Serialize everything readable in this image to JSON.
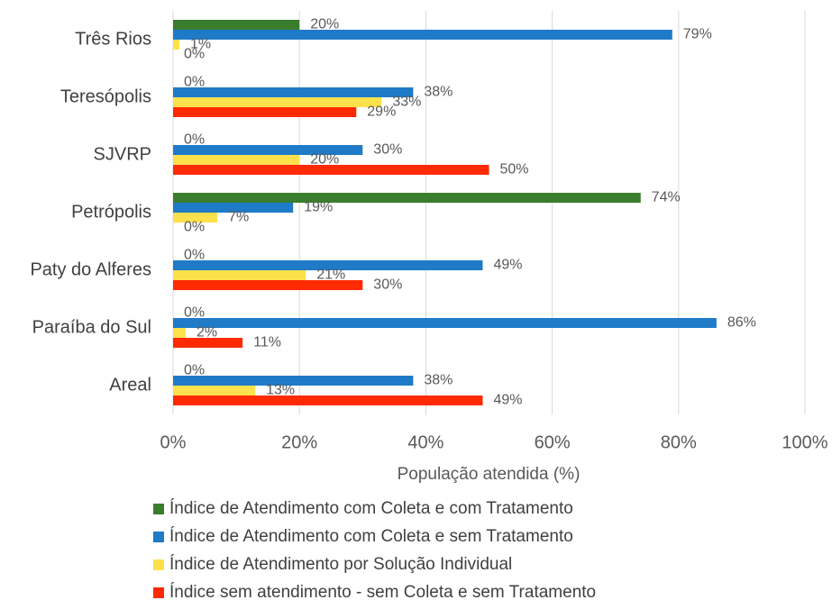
{
  "chart_data": {
    "type": "hbar",
    "categories": [
      "Três Rios",
      "Teresópolis",
      "SJVRP",
      "Petrópolis",
      "Paty do Alferes",
      "Paraíba do Sul",
      "Areal"
    ],
    "series": [
      {
        "name": "Índice de Atendimento com Coleta e com Tratamento",
        "color": "#3a7d2c",
        "values": [
          20,
          0,
          0,
          74,
          0,
          0,
          0
        ],
        "value_labels": [
          "20%",
          "0%",
          "0%",
          "74%",
          "0%",
          "0%",
          "0%"
        ]
      },
      {
        "name": "Índice de Atendimento com Coleta e sem Tratamento",
        "color": "#1f7ac8",
        "values": [
          79,
          38,
          30,
          19,
          49,
          86,
          38
        ],
        "value_labels": [
          "79%",
          "38%",
          "30%",
          "19%",
          "49%",
          "86%",
          "38%"
        ]
      },
      {
        "name": "Índice de Atendimento por Solução Individual",
        "color": "#fde14c",
        "values": [
          1,
          33,
          20,
          7,
          21,
          2,
          13
        ],
        "value_labels": [
          "1%",
          "33%",
          "20%",
          "7%",
          "21%",
          "2%",
          "13%"
        ]
      },
      {
        "name": "Índice sem atendimento - sem Coleta e sem Tratamento",
        "color": "#fe2a02",
        "values": [
          0,
          29,
          50,
          0,
          30,
          11,
          49
        ],
        "value_labels": [
          "0%",
          "29%",
          "50%",
          "0%",
          "30%",
          "11%",
          "49%"
        ]
      }
    ],
    "xlabel": "População atendida (%)",
    "xlim": [
      0,
      100
    ],
    "xticks": [
      {
        "value": 0,
        "label": "0%"
      },
      {
        "value": 20,
        "label": "20%"
      },
      {
        "value": 40,
        "label": "40%"
      },
      {
        "value": 60,
        "label": "60%"
      },
      {
        "value": 80,
        "label": "80%"
      },
      {
        "value": 100,
        "label": "100%"
      }
    ],
    "grid": true,
    "legend": "bottom"
  }
}
